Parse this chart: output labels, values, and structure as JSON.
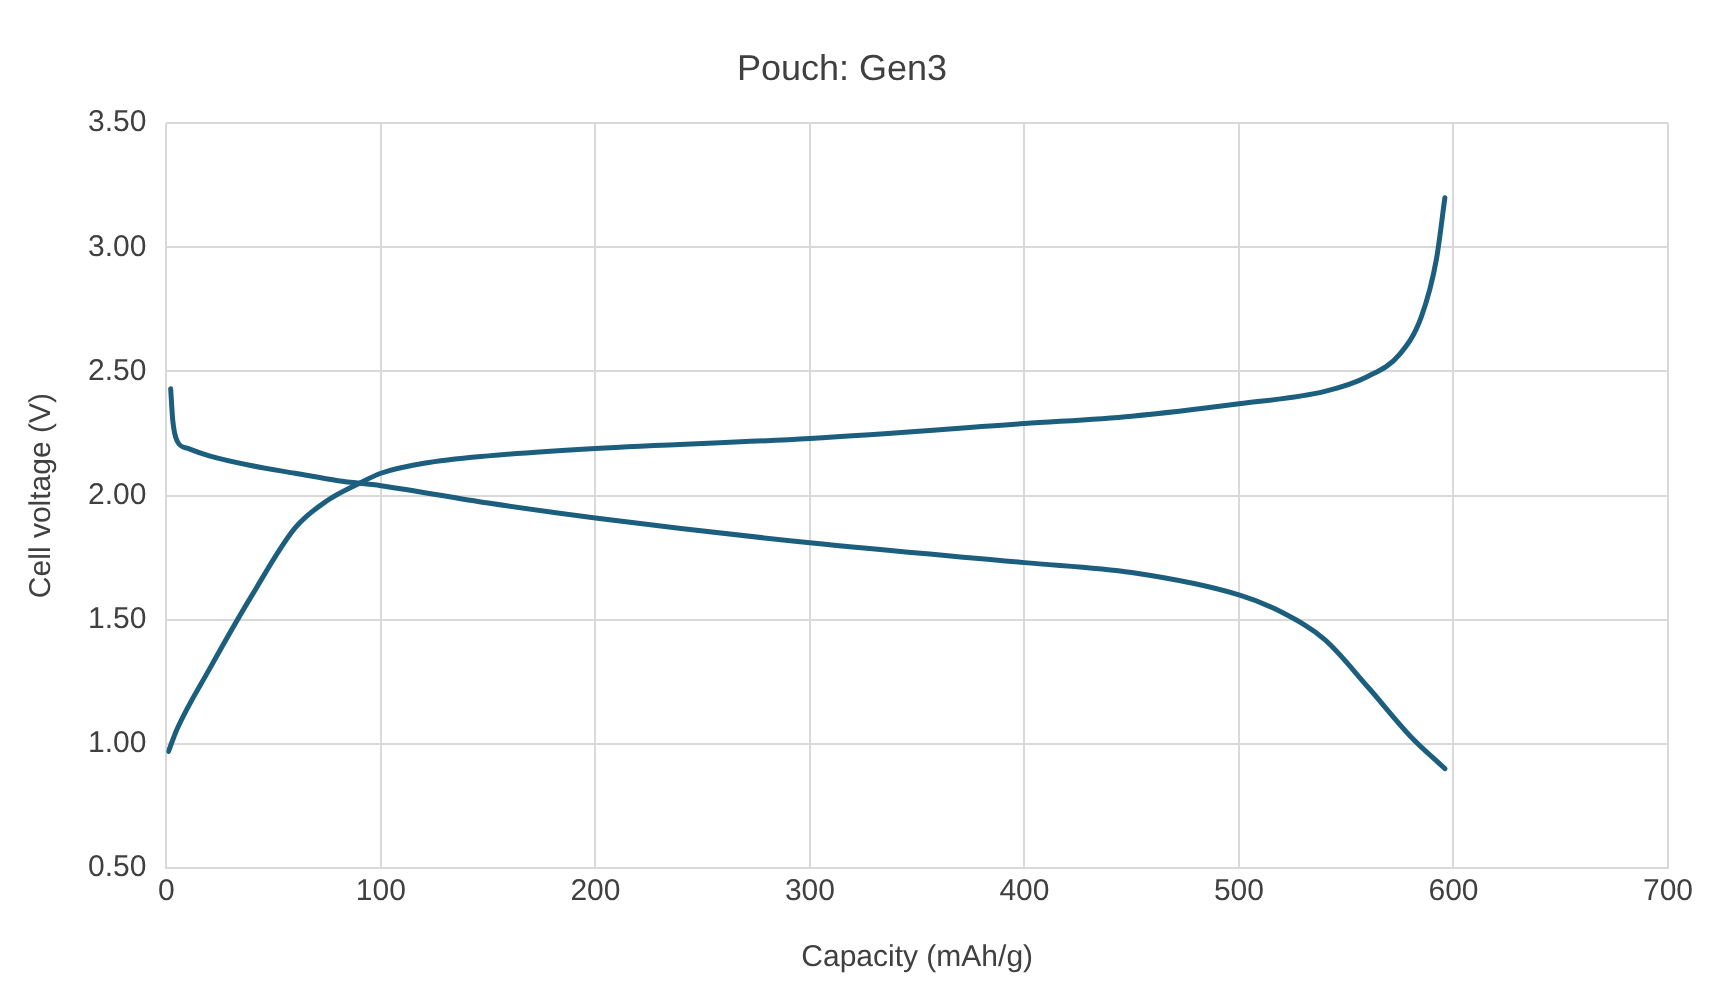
{
  "chart_data": {
    "type": "line",
    "title": "Pouch: Gen3",
    "xlabel": "Capacity (mAh/g)",
    "ylabel": "Cell voltage (V)",
    "xlim": [
      0,
      700
    ],
    "xticks": [
      0,
      100,
      200,
      300,
      400,
      500,
      600,
      700
    ],
    "ylim": [
      0.5,
      3.5
    ],
    "yticks": [
      {
        "value": 0.5,
        "label": "0.50"
      },
      {
        "value": 1,
        "label": "1.00"
      },
      {
        "value": 1.5,
        "label": "1.50"
      },
      {
        "value": 2,
        "label": "2.00"
      },
      {
        "value": 2.5,
        "label": "2.50"
      },
      {
        "value": 3,
        "label": "3.00"
      },
      {
        "value": 3.5,
        "label": "3.50"
      }
    ],
    "grid": true,
    "legend": false,
    "marker": "none",
    "line_style": "solid",
    "series": [
      {
        "color": "#1b5e7e",
        "x": [
          2,
          3,
          5,
          10,
          20,
          40,
          60,
          80,
          100,
          150,
          200,
          300,
          400,
          450,
          500,
          520,
          540,
          560,
          580,
          596
        ],
        "values": [
          2.43,
          2.3,
          2.22,
          2.19,
          2.16,
          2.12,
          2.09,
          2.06,
          2.04,
          1.97,
          1.91,
          1.81,
          1.73,
          1.69,
          1.6,
          1.53,
          1.42,
          1.23,
          1.03,
          0.9
        ]
      },
      {
        "color": "#1b5e7e",
        "x": [
          1,
          5,
          20,
          40,
          60,
          75,
          90,
          100,
          120,
          150,
          200,
          300,
          400,
          450,
          500,
          540,
          560,
          575,
          585,
          592,
          596
        ],
        "values": [
          0.97,
          1.06,
          1.3,
          1.6,
          1.87,
          1.98,
          2.05,
          2.09,
          2.13,
          2.16,
          2.19,
          2.23,
          2.29,
          2.32,
          2.37,
          2.42,
          2.48,
          2.57,
          2.72,
          2.95,
          3.2
        ]
      }
    ]
  }
}
